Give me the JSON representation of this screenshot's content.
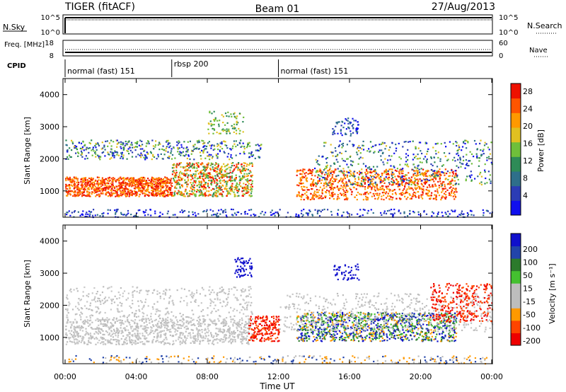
{
  "header": {
    "station": "TIGER (fitACF)",
    "beam": "Beam 01",
    "date": "27/Aug/2013"
  },
  "colors": {
    "scatter_blue": "#2233bb",
    "scatter_green": "#2e8b57",
    "scatter_red": "#ee2200",
    "scatter_orange": "#ff8c00",
    "ground_grey": "#bdbdbd"
  },
  "chart_data": [
    {
      "type": "line",
      "name_left": "N.Sky",
      "name_right": "N.Search",
      "yticks_left": [
        "10^5",
        "10^0"
      ],
      "yticks_right": [
        "10^5",
        "10^0"
      ]
    },
    {
      "type": "line",
      "name_left": "Freq. [MHz]",
      "name_right": "Nave",
      "yticks_left": [
        "18",
        "8"
      ],
      "yticks_right": [
        "60",
        "0"
      ]
    },
    {
      "type": "table",
      "label": "CPID",
      "segments": [
        {
          "start": "00:00",
          "end": "06:00",
          "label": "normal (fast) 151"
        },
        {
          "start": "06:00",
          "end": "12:00",
          "label": "rbsp 200"
        },
        {
          "start": "12:00",
          "end": "24:00",
          "label": "normal (fast) 151"
        }
      ]
    },
    {
      "type": "heatmap",
      "ylabel": "Slant Range [km]",
      "yticks": [
        "1000",
        "2000",
        "3000",
        "4000"
      ],
      "ylim": [
        180,
        4500
      ],
      "colorbar_label": "Power [dB]",
      "colorbar_ticks": [
        "4",
        "8",
        "12",
        "16",
        "20",
        "24",
        "28"
      ]
    },
    {
      "type": "heatmap",
      "ylabel": "Slant Range [km]",
      "yticks": [
        "1000",
        "2000",
        "3000",
        "4000"
      ],
      "ylim": [
        180,
        4500
      ],
      "colorbar_label": "Velocity [m s⁻¹]",
      "colorbar_ticks": [
        "200",
        "100",
        "50",
        "15",
        "-15",
        "-50",
        "-100",
        "-200"
      ],
      "xlabel": "Time UT",
      "xticks": [
        "00:00",
        "04:00",
        "08:00",
        "12:00",
        "16:00",
        "20:00",
        "00:00"
      ]
    }
  ]
}
